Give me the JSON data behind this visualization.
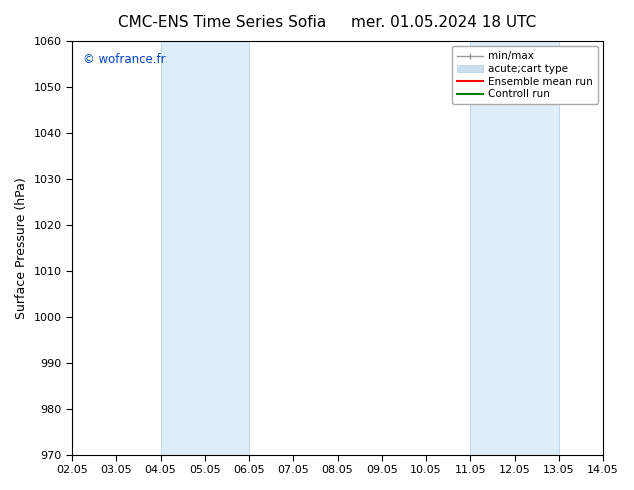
{
  "title_left": "CMC-ENS Time Series Sofia",
  "title_right": "mer. 01.05.2024 18 UTC",
  "ylabel": "Surface Pressure (hPa)",
  "ylim": [
    970,
    1060
  ],
  "yticks": [
    970,
    980,
    990,
    1000,
    1010,
    1020,
    1030,
    1040,
    1050,
    1060
  ],
  "xlim_start": 0,
  "xlim_end": 12,
  "xtick_labels": [
    "02.05",
    "03.05",
    "04.05",
    "05.05",
    "06.05",
    "07.05",
    "08.05",
    "09.05",
    "10.05",
    "11.05",
    "12.05",
    "13.05",
    "14.05"
  ],
  "xtick_positions": [
    0,
    1,
    2,
    3,
    4,
    5,
    6,
    7,
    8,
    9,
    10,
    11,
    12
  ],
  "shaded_bands": [
    {
      "x_start": 2,
      "x_end": 4,
      "color": "#ddeef8"
    },
    {
      "x_start": 9,
      "x_end": 11,
      "color": "#ddeef8"
    }
  ],
  "band_border_color": "#c0d8ec",
  "watermark_text": "© wofrance.fr",
  "watermark_color": "#0044cc",
  "background_color": "#ffffff",
  "title_fontsize": 11,
  "axis_label_fontsize": 9,
  "tick_fontsize": 8,
  "legend_fontsize": 7.5,
  "min_max_color": "#999999",
  "ensemble_color": "#ff0000",
  "control_color": "#008000",
  "acute_cart_color": "#ccddee"
}
